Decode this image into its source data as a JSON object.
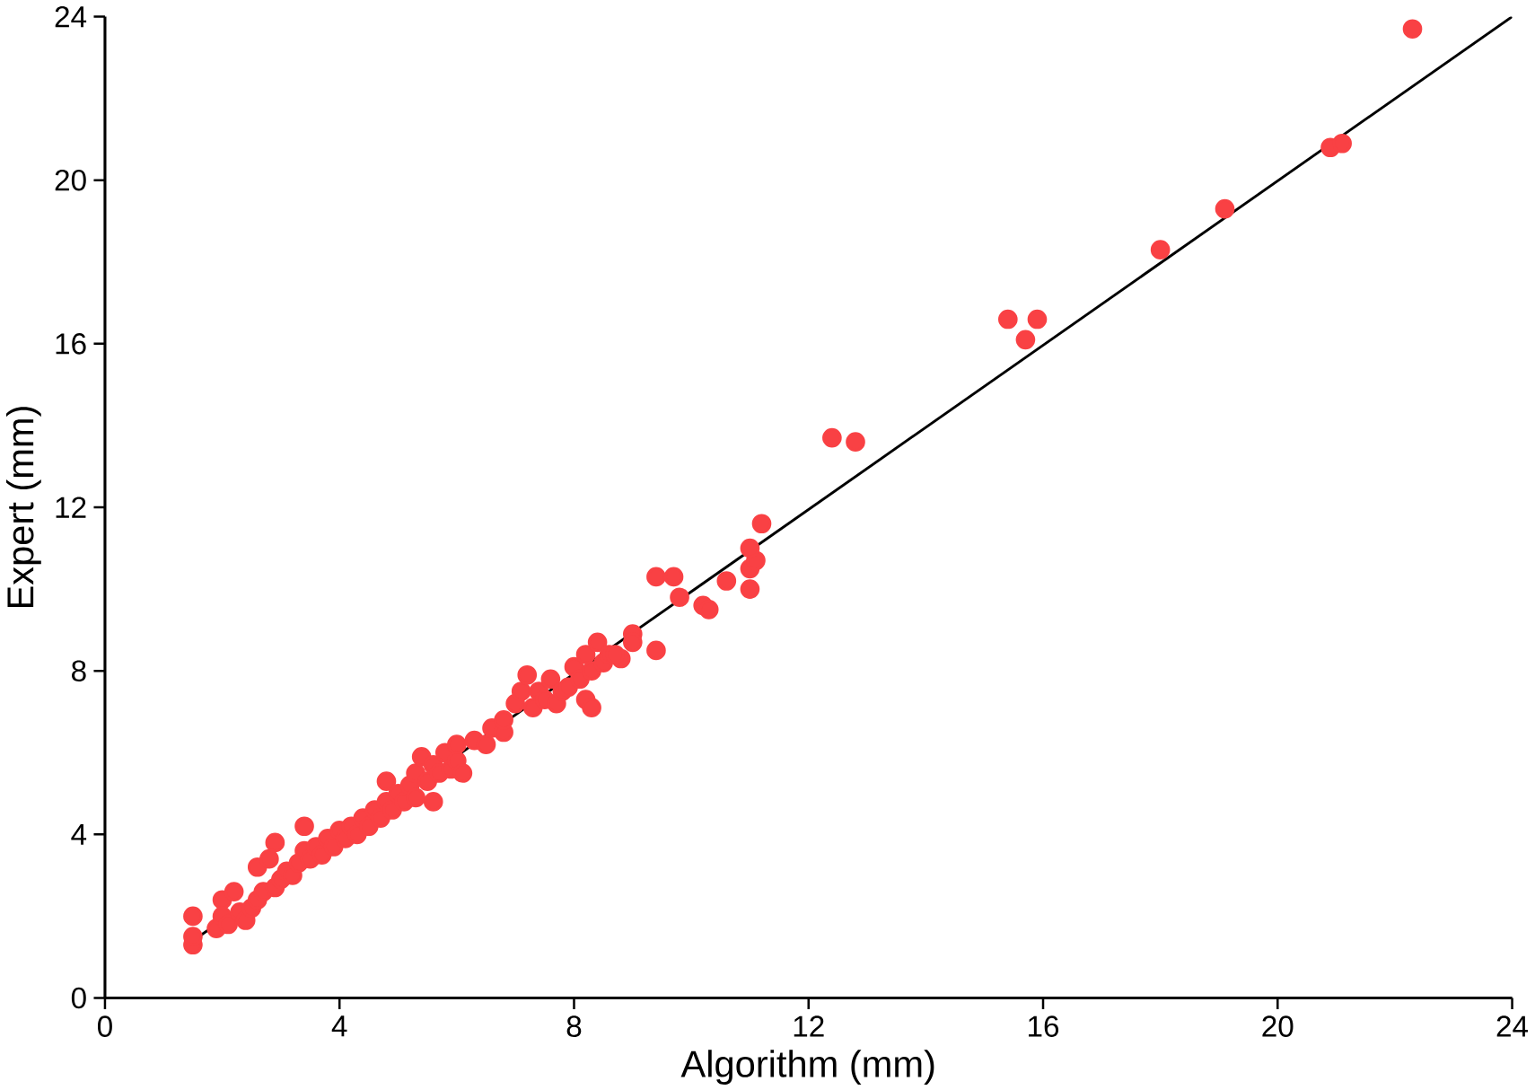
{
  "chart_data": {
    "type": "scatter",
    "xlabel": "Algorithm  (mm)",
    "ylabel": "Expert (mm)",
    "xlim": [
      0,
      24
    ],
    "ylim": [
      0,
      24
    ],
    "xticks": [
      0,
      4,
      8,
      12,
      16,
      20,
      24
    ],
    "yticks": [
      0,
      4,
      8,
      12,
      16,
      20,
      24
    ],
    "grid": false,
    "series": [
      {
        "color": "#f94144",
        "marker": "circle",
        "x": [
          1.5,
          1.5,
          1.5,
          1.9,
          2.0,
          2.0,
          2.1,
          2.2,
          2.3,
          2.4,
          2.5,
          2.6,
          2.6,
          2.7,
          2.8,
          2.9,
          2.9,
          3.0,
          3.1,
          3.2,
          3.3,
          3.4,
          3.4,
          3.5,
          3.6,
          3.7,
          3.8,
          3.9,
          4.0,
          4.1,
          4.2,
          4.3,
          4.4,
          4.5,
          4.6,
          4.7,
          4.8,
          4.8,
          4.9,
          5.0,
          5.1,
          5.2,
          5.3,
          5.3,
          5.4,
          5.5,
          5.6,
          5.6,
          5.7,
          5.8,
          5.9,
          6.0,
          6.0,
          6.1,
          6.3,
          6.5,
          6.6,
          6.8,
          6.8,
          7.0,
          7.1,
          7.2,
          7.3,
          7.4,
          7.5,
          7.6,
          7.7,
          7.8,
          7.9,
          8.0,
          8.1,
          8.2,
          8.2,
          8.3,
          8.3,
          8.4,
          8.5,
          8.6,
          8.8,
          8.7,
          9.0,
          9.0,
          9.4,
          9.4,
          9.7,
          9.8,
          10.2,
          10.3,
          10.6,
          11.0,
          11.0,
          11.1,
          11.0,
          11.2,
          12.4,
          12.8,
          15.4,
          15.7,
          15.9,
          18.0,
          19.1,
          20.9,
          21.1,
          22.3
        ],
        "values": [
          1.3,
          1.5,
          2.0,
          1.7,
          2.0,
          2.4,
          1.8,
          2.6,
          2.1,
          1.9,
          2.2,
          2.4,
          3.2,
          2.6,
          3.4,
          2.7,
          3.8,
          2.9,
          3.1,
          3.0,
          3.3,
          3.6,
          4.2,
          3.4,
          3.7,
          3.5,
          3.9,
          3.7,
          4.1,
          3.9,
          4.2,
          4.0,
          4.4,
          4.2,
          4.6,
          4.4,
          5.3,
          4.8,
          4.6,
          5.0,
          4.8,
          5.2,
          5.5,
          4.9,
          5.9,
          5.3,
          4.8,
          5.7,
          5.5,
          6.0,
          5.6,
          6.2,
          5.8,
          5.5,
          6.3,
          6.2,
          6.6,
          6.5,
          6.8,
          7.2,
          7.5,
          7.9,
          7.1,
          7.5,
          7.3,
          7.8,
          7.2,
          7.5,
          7.6,
          8.1,
          7.8,
          7.3,
          8.4,
          7.1,
          8.0,
          8.7,
          8.2,
          8.4,
          8.3,
          8.4,
          8.9,
          8.7,
          8.5,
          10.3,
          10.3,
          9.8,
          9.6,
          9.5,
          10.2,
          10.0,
          10.5,
          10.7,
          11.0,
          11.6,
          13.7,
          13.6,
          16.6,
          16.1,
          16.6,
          18.3,
          19.3,
          20.8,
          20.9,
          23.7
        ]
      },
      {
        "type": "line",
        "color": "#000000",
        "marker": "none",
        "x": [
          1.5,
          24
        ],
        "values": [
          1.4,
          24
        ]
      }
    ]
  }
}
